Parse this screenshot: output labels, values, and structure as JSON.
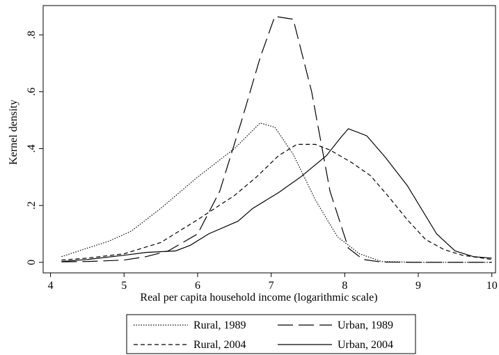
{
  "chart_data": {
    "type": "line",
    "xlabel": "Real per capita household income (logarithmic scale)",
    "ylabel": "Kernel density",
    "xlim": [
      3.9,
      10.05
    ],
    "ylim": [
      -0.037,
      0.903
    ],
    "xticks": [
      4,
      5,
      6,
      7,
      8,
      9,
      10
    ],
    "yticks": [
      0,
      {
        "value": 0.2,
        "label": ".2"
      },
      {
        "value": 0.4,
        "label": ".4"
      },
      {
        "value": 0.6,
        "label": ".6"
      },
      {
        "value": 0.8,
        "label": ".8"
      }
    ],
    "series": [
      {
        "name": "Rural, 1989",
        "color": "#000000",
        "style": "dotted",
        "x": [
          4.15,
          4.5,
          4.8,
          5.1,
          5.5,
          6,
          6.5,
          6.85,
          7.05,
          7.3,
          7.6,
          7.9,
          8.2,
          8.5,
          9,
          9.5,
          10
        ],
        "values": [
          0.02,
          0.05,
          0.075,
          0.11,
          0.19,
          0.3,
          0.4,
          0.49,
          0.475,
          0.38,
          0.22,
          0.09,
          0.03,
          0.003,
          0,
          0,
          0
        ]
      },
      {
        "name": "Urban, 1989",
        "color": "#000000",
        "style": "long-dash",
        "x": [
          4.15,
          4.5,
          5,
          5.3,
          5.6,
          6,
          6.3,
          6.6,
          6.85,
          7.05,
          7.3,
          7.55,
          7.8,
          8.05,
          8.25,
          8.5,
          9,
          10
        ],
        "values": [
          0.002,
          0.003,
          0.008,
          0.02,
          0.04,
          0.1,
          0.25,
          0.5,
          0.72,
          0.865,
          0.855,
          0.6,
          0.25,
          0.05,
          0.01,
          0.001,
          0,
          0
        ]
      },
      {
        "name": "Rural, 2004",
        "color": "#000000",
        "style": "dash",
        "x": [
          4.15,
          4.5,
          5,
          5.5,
          6,
          6.5,
          6.8,
          7.1,
          7.35,
          7.6,
          7.8,
          8.1,
          8.35,
          8.6,
          8.85,
          9.1,
          9.35,
          9.6,
          10
        ],
        "values": [
          0.008,
          0.015,
          0.03,
          0.07,
          0.15,
          0.235,
          0.3,
          0.375,
          0.415,
          0.415,
          0.395,
          0.35,
          0.305,
          0.23,
          0.15,
          0.08,
          0.045,
          0.025,
          0.01
        ]
      },
      {
        "name": "Urban, 2004",
        "color": "#000000",
        "style": "solid",
        "x": [
          4.15,
          4.5,
          5,
          5.3,
          5.7,
          5.9,
          6.15,
          6.55,
          6.75,
          7.1,
          7.4,
          7.75,
          7.95,
          8.05,
          8.3,
          8.55,
          8.85,
          9.25,
          9.5,
          9.75,
          10
        ],
        "values": [
          0.003,
          0.01,
          0.025,
          0.035,
          0.04,
          0.06,
          0.1,
          0.145,
          0.19,
          0.245,
          0.3,
          0.375,
          0.44,
          0.47,
          0.445,
          0.37,
          0.27,
          0.1,
          0.04,
          0.02,
          0.015
        ]
      }
    ]
  }
}
